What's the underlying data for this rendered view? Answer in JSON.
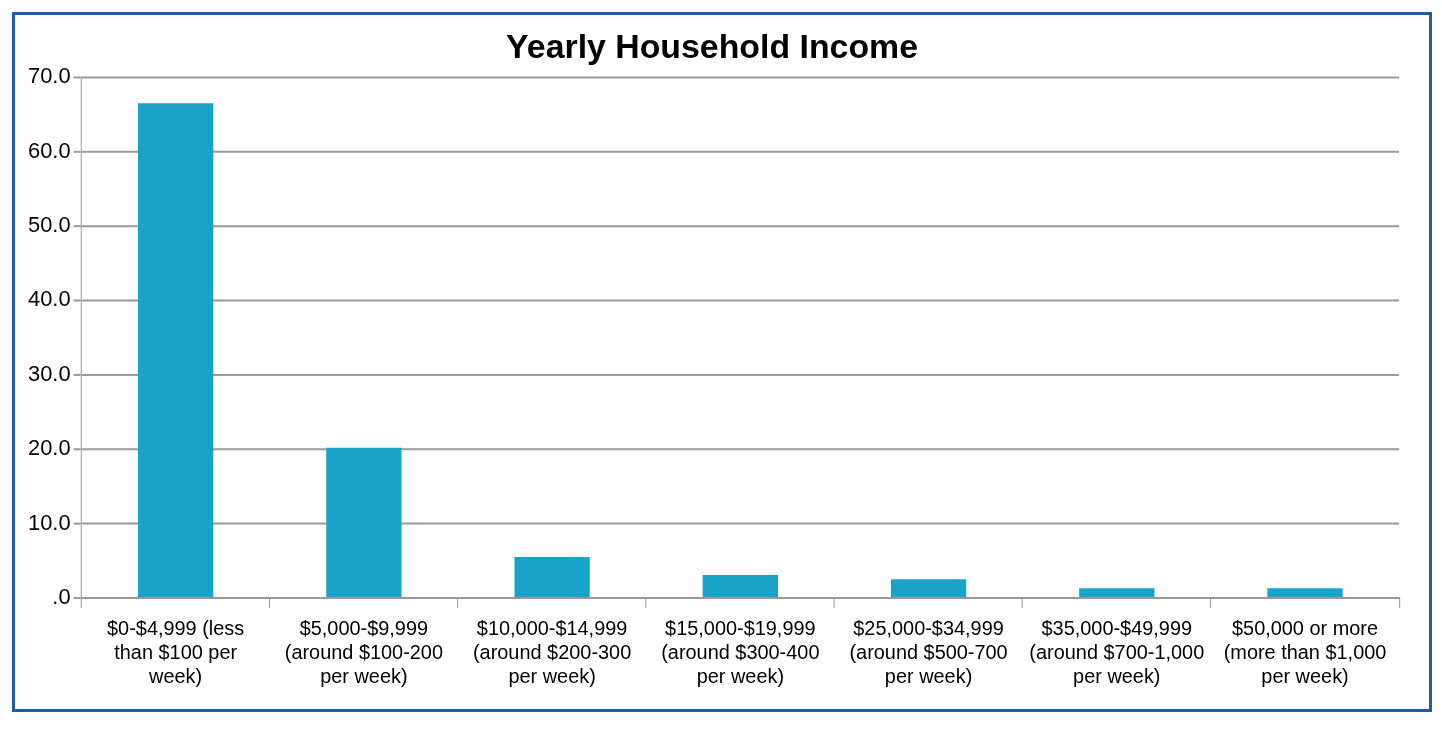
{
  "chart_data": {
    "type": "bar",
    "title": "Yearly Household Income",
    "categories": [
      "$0-$4,999 (less than $100 per week)",
      "$5,000-$9,999 (around $100-200 per week)",
      "$10,000-$14,999 (around $200-300 per week)",
      "$15,000-$19,999 (around $300-400 per week)",
      "$25,000-$34,999 (around $500-700 per week)",
      "$35,000-$49,999 (around $700-1,000 per week)",
      "$50,000 or more (more than $1,000 per week)"
    ],
    "values": [
      66.5,
      20.2,
      5.5,
      3.1,
      2.5,
      1.3,
      1.3
    ],
    "color": "#1aa3c8",
    "ylim": [
      0,
      70
    ],
    "yticks": [
      {
        "value": 0,
        "label": ".0"
      },
      {
        "value": 10,
        "label": "10.0"
      },
      {
        "value": 20,
        "label": "20.0"
      },
      {
        "value": 30,
        "label": "30.0"
      },
      {
        "value": 40,
        "label": "40.0"
      },
      {
        "value": 50,
        "label": "50.0"
      },
      {
        "value": 60,
        "label": "60.0"
      },
      {
        "value": 70,
        "label": "70.0"
      }
    ],
    "grid": "y",
    "legend": false
  }
}
